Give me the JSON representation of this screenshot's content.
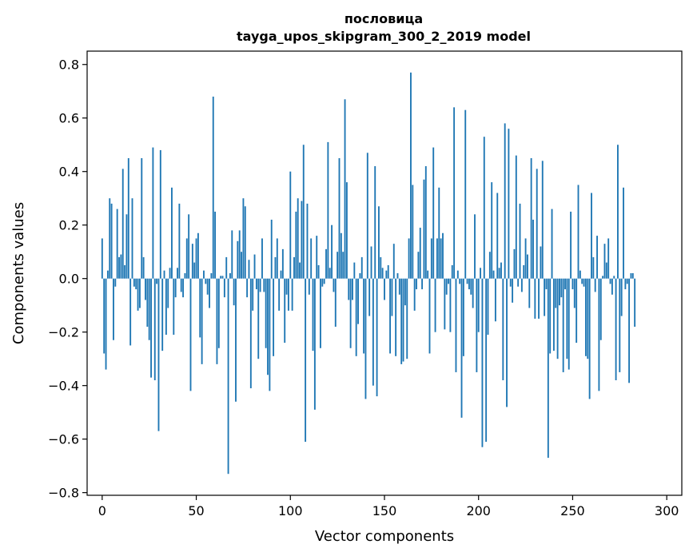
{
  "chart_data": {
    "type": "bar",
    "title_line1": "пословица",
    "title_line2": "tayga_upos_skipgram_300_2_2019 model",
    "xlabel": "Vector components",
    "ylabel": "Components values",
    "xlim": [
      -8,
      308
    ],
    "ylim": [
      -0.81,
      0.85
    ],
    "x_ticks": [
      0,
      50,
      100,
      150,
      200,
      250,
      300
    ],
    "y_ticks": [
      -0.8,
      -0.6,
      -0.4,
      -0.2,
      0.0,
      0.2,
      0.4,
      0.6,
      0.8
    ],
    "x_tick_labels": [
      "0",
      "50",
      "100",
      "150",
      "200",
      "250",
      "300"
    ],
    "y_tick_labels": [
      "−0.8",
      "−0.6",
      "−0.4",
      "−0.2",
      "0.0",
      "0.2",
      "0.4",
      "0.6",
      "0.8"
    ],
    "bar_color": "#1f77b4",
    "grid": false,
    "values": [
      0.15,
      -0.28,
      -0.34,
      0.03,
      0.3,
      0.28,
      -0.23,
      -0.03,
      0.26,
      0.08,
      0.09,
      0.41,
      0.05,
      0.24,
      0.45,
      -0.25,
      0.3,
      -0.03,
      -0.04,
      -0.12,
      -0.11,
      0.45,
      0.08,
      -0.08,
      -0.18,
      -0.23,
      -0.37,
      0.49,
      -0.38,
      -0.02,
      -0.57,
      0.48,
      -0.27,
      0.03,
      -0.21,
      -0.11,
      0.04,
      0.34,
      -0.21,
      -0.07,
      0.04,
      0.28,
      -0.05,
      -0.07,
      0.02,
      0.15,
      0.24,
      -0.42,
      0.13,
      0.06,
      0.15,
      0.17,
      -0.22,
      -0.32,
      0.03,
      -0.02,
      -0.06,
      -0.11,
      0.02,
      0.68,
      0.25,
      -0.32,
      -0.26,
      0.01,
      0.01,
      -0.07,
      0.08,
      -0.73,
      0.02,
      0.18,
      -0.1,
      -0.46,
      0.14,
      0.18,
      0.1,
      0.3,
      0.27,
      -0.07,
      0.07,
      -0.41,
      -0.12,
      0.09,
      -0.04,
      -0.3,
      -0.05,
      0.15,
      -0.05,
      -0.26,
      -0.36,
      -0.42,
      0.22,
      -0.29,
      0.08,
      0.15,
      -0.12,
      0.03,
      0.11,
      -0.24,
      -0.06,
      -0.12,
      0.4,
      -0.12,
      0.08,
      0.25,
      0.3,
      0.06,
      0.29,
      0.5,
      -0.61,
      0.28,
      -0.06,
      0.15,
      -0.27,
      -0.49,
      0.16,
      0.05,
      -0.26,
      -0.03,
      -0.02,
      0.11,
      0.51,
      0.04,
      0.2,
      -0.05,
      -0.18,
      0.1,
      0.45,
      0.17,
      0.1,
      0.67,
      0.36,
      -0.08,
      -0.26,
      -0.08,
      0.06,
      -0.29,
      -0.17,
      0.02,
      0.08,
      -0.28,
      -0.45,
      0.47,
      -0.14,
      0.12,
      -0.4,
      0.42,
      -0.44,
      0.27,
      0.08,
      0.04,
      -0.08,
      0.03,
      0.05,
      -0.28,
      -0.14,
      0.13,
      -0.29,
      0.02,
      -0.06,
      -0.32,
      -0.31,
      -0.1,
      -0.3,
      0.15,
      0.77,
      0.35,
      -0.12,
      -0.04,
      0.1,
      0.19,
      -0.04,
      0.37,
      0.42,
      0.03,
      -0.28,
      0.15,
      0.49,
      -0.2,
      0.15,
      0.34,
      0.15,
      0.17,
      -0.19,
      -0.06,
      -0.02,
      -0.2,
      0.05,
      0.64,
      -0.35,
      0.03,
      -0.02,
      -0.52,
      -0.29,
      0.63,
      -0.02,
      -0.04,
      -0.06,
      -0.11,
      0.24,
      -0.35,
      -0.2,
      0.04,
      -0.63,
      0.53,
      -0.61,
      -0.21,
      0.1,
      0.36,
      0.03,
      -0.16,
      0.32,
      0.04,
      0.06,
      -0.38,
      0.58,
      -0.48,
      0.56,
      -0.03,
      -0.09,
      0.11,
      0.46,
      -0.03,
      0.28,
      -0.05,
      0.05,
      0.15,
      0.09,
      -0.11,
      0.45,
      0.22,
      -0.15,
      0.41,
      -0.15,
      0.12,
      0.44,
      -0.14,
      -0.04,
      -0.67,
      -0.28,
      0.26,
      -0.27,
      -0.11,
      -0.3,
      -0.1,
      -0.07,
      -0.35,
      -0.04,
      -0.3,
      -0.34,
      0.25,
      -0.04,
      -0.11,
      -0.24,
      0.35,
      0.03,
      -0.02,
      -0.03,
      -0.29,
      -0.3,
      -0.45,
      0.32,
      0.08,
      -0.05,
      0.16,
      -0.42,
      -0.23,
      0.01,
      0.13,
      0.06,
      0.15,
      -0.02,
      -0.06,
      0.01,
      -0.38,
      0.5,
      -0.35,
      -0.14,
      0.34,
      -0.04,
      -0.02,
      -0.39,
      0.02,
      0.02,
      -0.18
    ]
  }
}
